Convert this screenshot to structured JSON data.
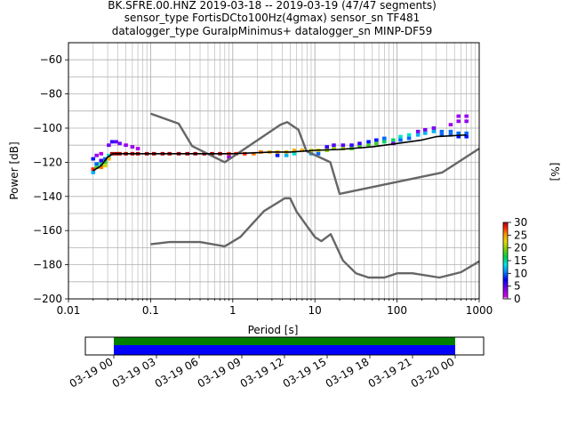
{
  "title_lines": [
    "BK.SFRE.00.HNZ   2019-03-18 -- 2019-03-19  (47/47 segments)",
    "sensor_type FortisDCto100Hz(4gmax) sensor_sn TF481",
    "datalogger_type GuralpMinimus+ datalogger_sn MINP-DF59"
  ],
  "colors": {
    "axes": "#000000",
    "grid": "#b0b0b0",
    "noise_model": "#666666",
    "mode_line": "#000000",
    "coverage_green": "#008000",
    "coverage_blue": "#0000ff",
    "colormap": [
      "#ffffff",
      "#d300e8",
      "#8a00f0",
      "#0000ff",
      "#0090ff",
      "#00e5e5",
      "#00d24a",
      "#7cd200",
      "#e6d800",
      "#ff9000",
      "#ff2000",
      "#b00000"
    ]
  },
  "chart_data": [
    {
      "type": "heatmap",
      "subtype": "probabilistic power spectral density",
      "title": "BK.SFRE.00.HNZ   2019-03-18 -- 2019-03-19  (47/47 segments)",
      "xlabel": "Period [s]",
      "ylabel": "Power [dB]",
      "xscale": "log",
      "xlim": [
        0.01,
        1000
      ],
      "ylim": [
        -200,
        -50
      ],
      "xticks": [
        0.01,
        0.1,
        1,
        10,
        100,
        1000
      ],
      "xtick_labels": [
        "0.01",
        "0.1",
        "1",
        "10",
        "100",
        "1000"
      ],
      "yticks": [
        -200,
        -180,
        -160,
        -140,
        -120,
        -100,
        -80,
        -60
      ],
      "ytick_labels": [
        "−200",
        "−180",
        "−160",
        "−140",
        "−120",
        "−100",
        "−80",
        "−60"
      ],
      "grid": true,
      "colorbar": {
        "label": "[%]",
        "range": [
          0,
          30
        ],
        "ticks": [
          0,
          5,
          10,
          15,
          20,
          25,
          30
        ],
        "tick_labels": [
          "0",
          "5",
          "10",
          "15",
          "20",
          "25",
          "30"
        ]
      },
      "series": [
        {
          "role": "new high noise model",
          "x": [
            0.1,
            0.22,
            0.32,
            0.8,
            3.8,
            4.6,
            6.3,
            7.9,
            15.4,
            20,
            354.8,
            1000
          ],
          "y": [
            -91.5,
            -97.4,
            -110.5,
            -120,
            -98,
            -96.5,
            -101,
            -113.5,
            -120,
            -138.5,
            -126,
            -112
          ]
        },
        {
          "role": "new low noise model",
          "x": [
            0.1,
            0.17,
            0.4,
            0.8,
            1.24,
            2.4,
            4.3,
            5,
            6,
            10,
            12,
            15.6,
            21.9,
            31.6,
            45,
            70,
            101,
            154,
            328,
            600,
            1000
          ],
          "y": [
            -168,
            -166.7,
            -166.7,
            -169.2,
            -163.7,
            -148.6,
            -141.1,
            -141.1,
            -149,
            -163.8,
            -166.2,
            -162.1,
            -177.5,
            -185,
            -187.5,
            -187.5,
            -185,
            -185,
            -187.5,
            -184.4,
            -178
          ]
        },
        {
          "role": "mode",
          "x": [
            0.02,
            0.025,
            0.03,
            0.035,
            0.05,
            0.1,
            0.5,
            1,
            3,
            5,
            10,
            20,
            50,
            100,
            200,
            300,
            700
          ],
          "y": [
            -125,
            -122,
            -117,
            -115,
            -115,
            -115,
            -115,
            -115,
            -114,
            -114,
            -113,
            -112.5,
            -111,
            -109,
            -107,
            -105,
            -104
          ]
        }
      ],
      "cells": [
        {
          "period": 0.02,
          "db": -126,
          "pct": 12
        },
        {
          "period": 0.02,
          "db": -124,
          "pct": 28
        },
        {
          "period": 0.02,
          "db": -118,
          "pct": 8
        },
        {
          "period": 0.022,
          "db": -123,
          "pct": 18
        },
        {
          "period": 0.022,
          "db": -121,
          "pct": 10
        },
        {
          "period": 0.022,
          "db": -116,
          "pct": 3
        },
        {
          "period": 0.025,
          "db": -123,
          "pct": 26
        },
        {
          "period": 0.025,
          "db": -121,
          "pct": 16
        },
        {
          "period": 0.025,
          "db": -119,
          "pct": 6
        },
        {
          "period": 0.025,
          "db": -115,
          "pct": 2
        },
        {
          "period": 0.028,
          "db": -122,
          "pct": 22
        },
        {
          "period": 0.028,
          "db": -120,
          "pct": 18
        },
        {
          "period": 0.028,
          "db": -118,
          "pct": 10
        },
        {
          "period": 0.031,
          "db": -118,
          "pct": 24
        },
        {
          "period": 0.031,
          "db": -116,
          "pct": 14
        },
        {
          "period": 0.031,
          "db": -110,
          "pct": 4
        },
        {
          "period": 0.034,
          "db": -115,
          "pct": 30
        },
        {
          "period": 0.034,
          "db": -108,
          "pct": 6
        },
        {
          "period": 0.038,
          "db": -115,
          "pct": 30
        },
        {
          "period": 0.038,
          "db": -108,
          "pct": 5
        },
        {
          "period": 0.042,
          "db": -115,
          "pct": 30
        },
        {
          "period": 0.042,
          "db": -109,
          "pct": 4
        },
        {
          "period": 0.05,
          "db": -115,
          "pct": 30
        },
        {
          "period": 0.05,
          "db": -110,
          "pct": 3
        },
        {
          "period": 0.06,
          "db": -115,
          "pct": 30
        },
        {
          "period": 0.06,
          "db": -111,
          "pct": 3
        },
        {
          "period": 0.07,
          "db": -115,
          "pct": 30
        },
        {
          "period": 0.07,
          "db": -112,
          "pct": 2
        },
        {
          "period": 0.09,
          "db": -115,
          "pct": 30
        },
        {
          "period": 0.11,
          "db": -115,
          "pct": 30
        },
        {
          "period": 0.14,
          "db": -115,
          "pct": 30
        },
        {
          "period": 0.17,
          "db": -115,
          "pct": 30
        },
        {
          "period": 0.22,
          "db": -115,
          "pct": 30
        },
        {
          "period": 0.28,
          "db": -115,
          "pct": 30
        },
        {
          "period": 0.35,
          "db": -115,
          "pct": 30
        },
        {
          "period": 0.45,
          "db": -115,
          "pct": 30
        },
        {
          "period": 0.56,
          "db": -115,
          "pct": 30
        },
        {
          "period": 0.7,
          "db": -115,
          "pct": 30
        },
        {
          "period": 0.9,
          "db": -115,
          "pct": 28
        },
        {
          "period": 0.9,
          "db": -117,
          "pct": 3
        },
        {
          "period": 1.1,
          "db": -115,
          "pct": 28
        },
        {
          "period": 1.4,
          "db": -115,
          "pct": 28
        },
        {
          "period": 1.8,
          "db": -115,
          "pct": 26
        },
        {
          "period": 2.2,
          "db": -114,
          "pct": 26
        },
        {
          "period": 2.8,
          "db": -114,
          "pct": 24
        },
        {
          "period": 3.5,
          "db": -114,
          "pct": 24
        },
        {
          "period": 3.5,
          "db": -116,
          "pct": 8
        },
        {
          "period": 4.5,
          "db": -114,
          "pct": 24
        },
        {
          "period": 4.5,
          "db": -116,
          "pct": 12
        },
        {
          "period": 5.6,
          "db": -113,
          "pct": 24
        },
        {
          "period": 5.6,
          "db": -115,
          "pct": 14
        },
        {
          "period": 7,
          "db": -113,
          "pct": 24
        },
        {
          "period": 9,
          "db": -113,
          "pct": 22
        },
        {
          "period": 9,
          "db": -115,
          "pct": 12
        },
        {
          "period": 11,
          "db": -113,
          "pct": 22
        },
        {
          "period": 11,
          "db": -115,
          "pct": 10
        },
        {
          "period": 14,
          "db": -113,
          "pct": 20
        },
        {
          "period": 14,
          "db": -111,
          "pct": 6
        },
        {
          "period": 17,
          "db": -112,
          "pct": 20
        },
        {
          "period": 17,
          "db": -110,
          "pct": 5
        },
        {
          "period": 22,
          "db": -112,
          "pct": 20
        },
        {
          "period": 22,
          "db": -110,
          "pct": 5
        },
        {
          "period": 28,
          "db": -112,
          "pct": 18
        },
        {
          "period": 28,
          "db": -110,
          "pct": 6
        },
        {
          "period": 35,
          "db": -111,
          "pct": 18
        },
        {
          "period": 35,
          "db": -109,
          "pct": 6
        },
        {
          "period": 45,
          "db": -110,
          "pct": 18
        },
        {
          "period": 45,
          "db": -108,
          "pct": 8
        },
        {
          "period": 56,
          "db": -109,
          "pct": 18
        },
        {
          "period": 56,
          "db": -107,
          "pct": 8
        },
        {
          "period": 70,
          "db": -108,
          "pct": 16
        },
        {
          "period": 70,
          "db": -106,
          "pct": 10
        },
        {
          "period": 90,
          "db": -107,
          "pct": 16
        },
        {
          "period": 90,
          "db": -109,
          "pct": 4
        },
        {
          "period": 110,
          "db": -105,
          "pct": 14
        },
        {
          "period": 110,
          "db": -107,
          "pct": 10
        },
        {
          "period": 140,
          "db": -104,
          "pct": 14
        },
        {
          "period": 140,
          "db": -106,
          "pct": 10
        },
        {
          "period": 180,
          "db": -104,
          "pct": 12
        },
        {
          "period": 180,
          "db": -102,
          "pct": 4
        },
        {
          "period": 220,
          "db": -103,
          "pct": 12
        },
        {
          "period": 220,
          "db": -101,
          "pct": 4
        },
        {
          "period": 280,
          "db": -102,
          "pct": 12
        },
        {
          "period": 280,
          "db": -100,
          "pct": 4
        },
        {
          "period": 350,
          "db": -102,
          "pct": 10
        },
        {
          "period": 350,
          "db": -104,
          "pct": 10
        },
        {
          "period": 450,
          "db": -102,
          "pct": 10
        },
        {
          "period": 450,
          "db": -104,
          "pct": 10
        },
        {
          "period": 450,
          "db": -98,
          "pct": 3
        },
        {
          "period": 560,
          "db": -103,
          "pct": 10
        },
        {
          "period": 560,
          "db": -105,
          "pct": 8
        },
        {
          "period": 560,
          "db": -93,
          "pct": 3
        },
        {
          "period": 560,
          "db": -96,
          "pct": 3
        },
        {
          "period": 700,
          "db": -103,
          "pct": 10
        },
        {
          "period": 700,
          "db": -105,
          "pct": 8
        },
        {
          "period": 700,
          "db": -93,
          "pct": 3
        },
        {
          "period": 700,
          "db": -96,
          "pct": 3
        }
      ]
    },
    {
      "type": "bar",
      "subtype": "data coverage timeline",
      "x_range": [
        "03-18 22:00",
        "03-20 02:00"
      ],
      "xtick_labels": [
        "03-19 00",
        "03-19 03",
        "03-19 06",
        "03-19 09",
        "03-19 12",
        "03-19 15",
        "03-19 18",
        "03-19 21",
        "03-20 00"
      ],
      "series": [
        {
          "color": "#008000",
          "start": "03-19 00",
          "end": "03-20 00"
        },
        {
          "color": "#0000ff",
          "start": "03-19 00",
          "end": "03-20 00"
        }
      ]
    }
  ]
}
